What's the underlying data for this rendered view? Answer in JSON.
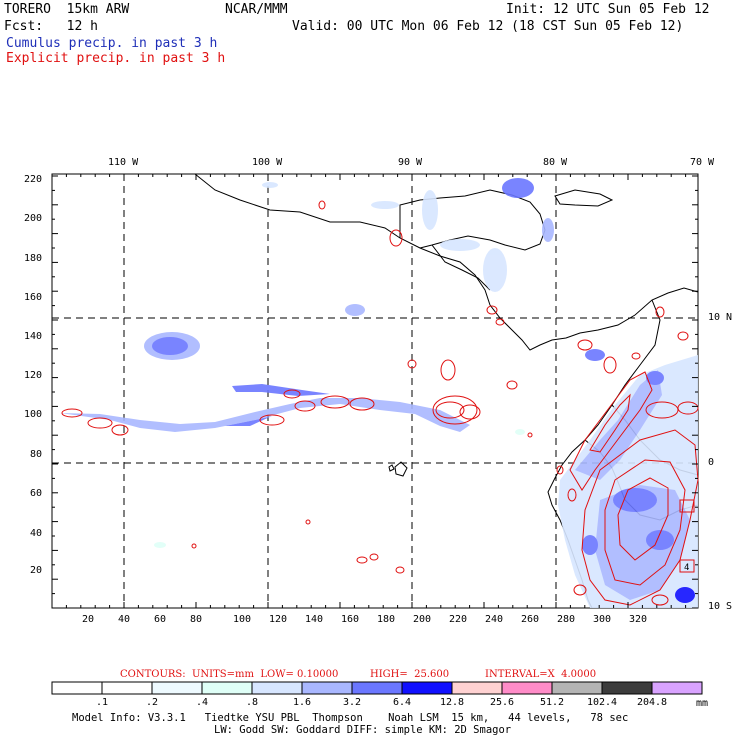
{
  "header": {
    "model": "TORERO  15km ARW",
    "org": "NCAR/MMM",
    "init": "Init: 12 UTC Sun 05 Feb 12",
    "fcst": "Fcst:   12 h",
    "valid": "Valid: 00 UTC Mon 06 Feb 12 (18 CST Sun 05 Feb 12)",
    "field1": "Cumulus precip. in past 3 h",
    "field2": "Explicit precip. in past 3 h"
  },
  "axes": {
    "x_ticks": [
      "20",
      "40",
      "60",
      "80",
      "100",
      "120",
      "140",
      "160",
      "180",
      "200",
      "220",
      "240",
      "260",
      "280",
      "300",
      "320"
    ],
    "y_ticks": [
      "20",
      "40",
      "60",
      "80",
      "100",
      "120",
      "140",
      "160",
      "180",
      "200",
      "220"
    ],
    "lon_labels": [
      "110 W",
      "100 W",
      "90 W",
      "80 W",
      "70 W"
    ],
    "lat_labels": [
      "10 N",
      "0",
      "10 S"
    ]
  },
  "contours_line": {
    "contours": "CONTOURS:  UNITS=mm  LOW= 0.10000",
    "high": "HIGH=  25.600",
    "interval": "INTERVAL=X  4.0000"
  },
  "colorbar": {
    "labels": [
      ".1",
      ".2",
      ".4",
      ".8",
      "1.6",
      "3.2",
      "6.4",
      "12.8",
      "25.6",
      "51.2",
      "102.4",
      "204.8"
    ],
    "unit": "mm",
    "colors": [
      "#ffffff",
      "#ffffff",
      "#eefaff",
      "#dffff7",
      "#d7e6ff",
      "#a9b7ff",
      "#6b77ff",
      "#1010ff",
      "#ffd2d2",
      "#ff8cc8",
      "#b4b4b4",
      "#3c3c3c",
      "#d9a3ff"
    ]
  },
  "footer": {
    "line1": "Model Info: V3.3.1   Tiedtke YSU PBL  Thompson    Noah LSM  15 km,   44 levels,   78 sec",
    "line2": "LW: Godd SW: Goddard DIFF: simple KM: 2D Smagor"
  }
}
